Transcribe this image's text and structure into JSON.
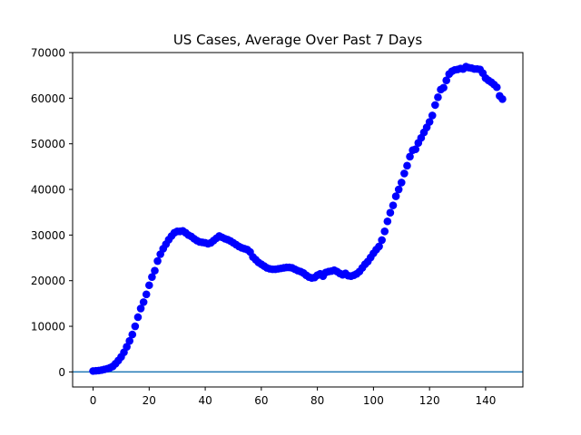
{
  "chart_data": {
    "type": "scatter",
    "title": "US Cases, Average Over Past 7 Days",
    "xlabel": "",
    "ylabel": "",
    "xlim": [
      -7.3,
      153.3
    ],
    "ylim": [
      -3300,
      70000
    ],
    "xticks": [
      0,
      20,
      40,
      60,
      80,
      100,
      120,
      140
    ],
    "yticks": [
      0,
      10000,
      20000,
      30000,
      40000,
      50000,
      60000,
      70000
    ],
    "grid": false,
    "baseline": {
      "y": 0,
      "color": "#1f77b4"
    },
    "marker_color": "#0000ff",
    "x": [
      0,
      1,
      2,
      3,
      4,
      5,
      6,
      7,
      8,
      9,
      10,
      11,
      12,
      13,
      14,
      15,
      16,
      17,
      18,
      19,
      20,
      21,
      22,
      23,
      24,
      25,
      26,
      27,
      28,
      29,
      30,
      31,
      32,
      33,
      34,
      35,
      36,
      37,
      38,
      39,
      40,
      41,
      42,
      43,
      44,
      45,
      46,
      47,
      48,
      49,
      50,
      51,
      52,
      53,
      54,
      55,
      56,
      57,
      58,
      59,
      60,
      61,
      62,
      63,
      64,
      65,
      66,
      67,
      68,
      69,
      70,
      71,
      72,
      73,
      74,
      75,
      76,
      77,
      78,
      79,
      80,
      81,
      82,
      83,
      84,
      85,
      86,
      87,
      88,
      89,
      90,
      91,
      92,
      93,
      94,
      95,
      96,
      97,
      98,
      99,
      100,
      101,
      102,
      103,
      104,
      105,
      106,
      107,
      108,
      109,
      110,
      111,
      112,
      113,
      114,
      115,
      116,
      117,
      118,
      119,
      120,
      121,
      122,
      123,
      124,
      125,
      126,
      127,
      128,
      129,
      130,
      131,
      132,
      133,
      134,
      135,
      136,
      137,
      138,
      139,
      140,
      141,
      142,
      143,
      144,
      145,
      146
    ],
    "y": [
      200,
      250,
      300,
      400,
      550,
      700,
      900,
      1200,
      1800,
      2500,
      3300,
      4300,
      5500,
      6800,
      8200,
      10000,
      12000,
      13900,
      15300,
      17000,
      19000,
      20800,
      22200,
      24300,
      25800,
      27000,
      28000,
      29000,
      29800,
      30500,
      30800,
      30800,
      30900,
      30500,
      30000,
      29700,
      29200,
      28800,
      28500,
      28400,
      28300,
      28100,
      28300,
      28800,
      29300,
      29800,
      29500,
      29200,
      29000,
      28700,
      28300,
      27900,
      27500,
      27200,
      27000,
      26800,
      26300,
      25200,
      24600,
      24000,
      23600,
      23200,
      22800,
      22600,
      22500,
      22500,
      22600,
      22700,
      22800,
      22900,
      22900,
      22800,
      22500,
      22200,
      22000,
      21700,
      21200,
      20800,
      20600,
      20700,
      21200,
      21500,
      21000,
      21800,
      22000,
      22100,
      22300,
      22000,
      21600,
      21300,
      21600,
      21100,
      21000,
      21200,
      21500,
      22000,
      22800,
      23600,
      24200,
      25100,
      26000,
      26800,
      27500,
      28900,
      30800,
      33000,
      34900,
      36500,
      38500,
      40000,
      41500,
      43500,
      45200,
      47200,
      48600,
      48800,
      50200,
      51300,
      52500,
      53600,
      54800,
      56200,
      58500,
      60200,
      61900,
      62300,
      63900,
      65300,
      65900,
      66200,
      66300,
      66500,
      66400,
      66900,
      66700,
      66600,
      66400,
      66400,
      66300,
      65500,
      64400,
      63900,
      63500,
      63000,
      62400,
      60500,
      59800
    ]
  }
}
